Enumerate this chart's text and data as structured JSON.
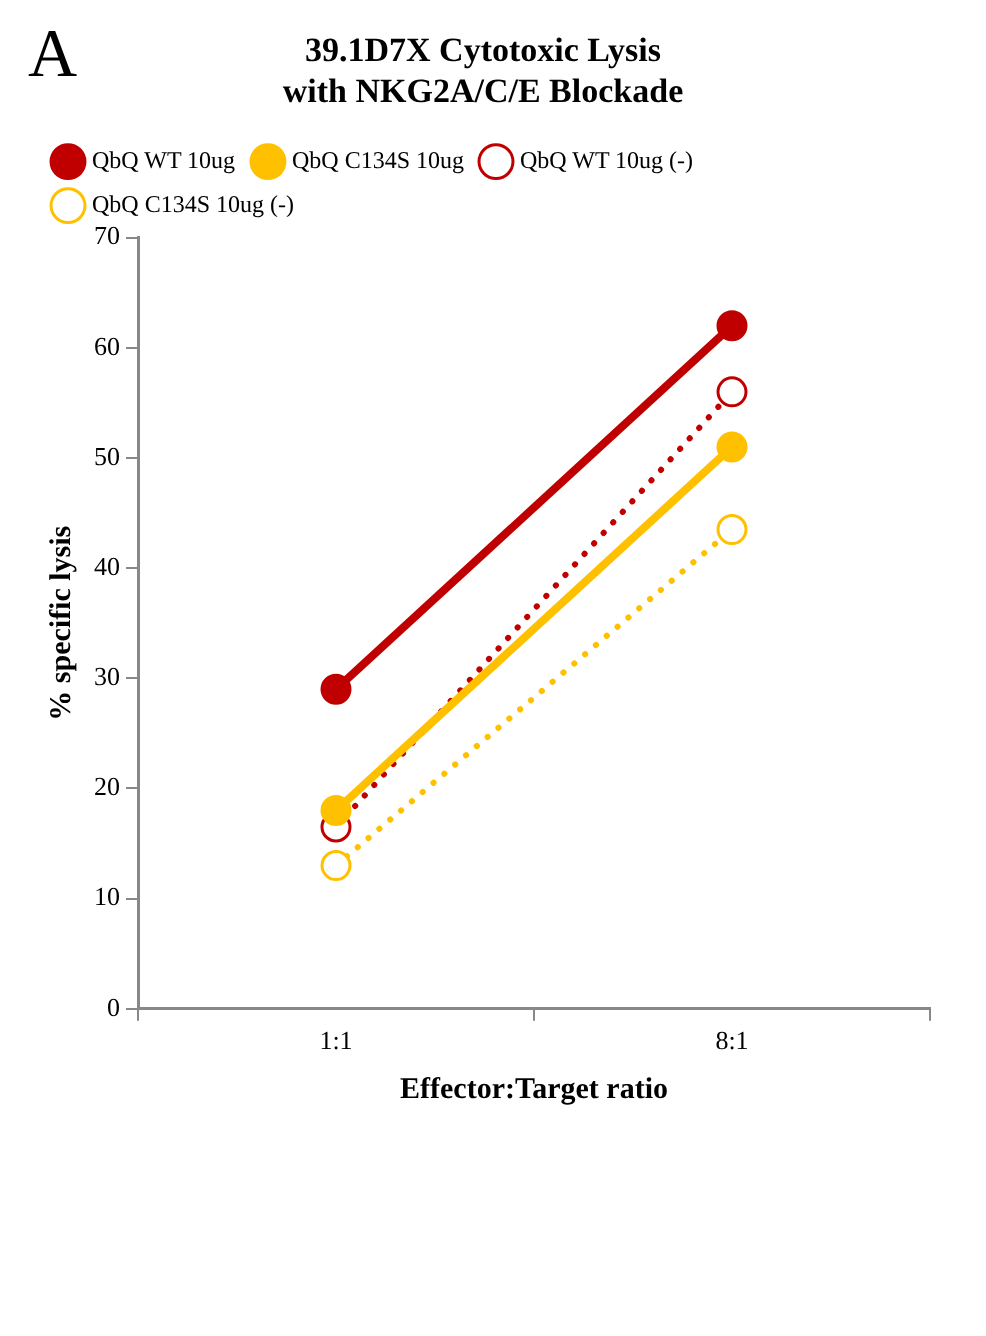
{
  "chart_data": {
    "type": "line",
    "title": [
      "39.1D7X Cytotoxic Lysis",
      "with NKG2A/C/E Blockade"
    ],
    "xlabel": "Effector:Target ratio",
    "ylabel": "% specific lysis",
    "annotations": [
      "A"
    ],
    "categories": [
      "1:1",
      "8:1"
    ],
    "ylim": [
      0,
      70
    ],
    "yticks": [
      0,
      10,
      20,
      30,
      40,
      50,
      60,
      70
    ],
    "grid": false,
    "legend": "top left",
    "marker": "circle",
    "series": [
      {
        "name": "QbQ WT 10ug",
        "color": "#c00000",
        "values": [
          29,
          62
        ],
        "line_style": "solid"
      },
      {
        "name": "QbQ C134S 10ug",
        "color": "#ffc000",
        "values": [
          18,
          51
        ],
        "line_style": "solid"
      },
      {
        "name": "QbQ WT 10ug (-)",
        "color": "#c00000",
        "values": [
          16.5,
          56
        ],
        "line_style": "dotted"
      },
      {
        "name": "QbQ C134S 10ug (-)",
        "color": "#ffc000",
        "values": [
          13,
          43.5
        ],
        "line_style": "dotted"
      }
    ]
  }
}
